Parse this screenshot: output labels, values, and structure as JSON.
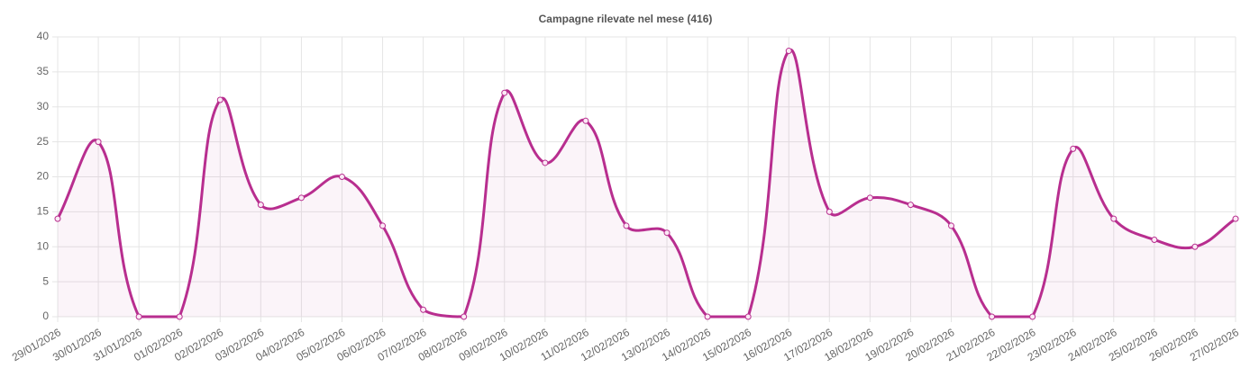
{
  "chart_data": {
    "type": "line",
    "title": "Campagne rilevate nel mese (416)",
    "categories": [
      "29/01/2026",
      "30/01/2026",
      "31/01/2026",
      "01/02/2026",
      "02/02/2026",
      "03/02/2026",
      "04/02/2026",
      "05/02/2026",
      "06/02/2026",
      "07/02/2026",
      "08/02/2026",
      "09/02/2026",
      "10/02/2026",
      "11/02/2026",
      "12/02/2026",
      "13/02/2026",
      "14/02/2026",
      "15/02/2026",
      "16/02/2026",
      "17/02/2026",
      "18/02/2026",
      "19/02/2026",
      "20/02/2026",
      "21/02/2026",
      "22/02/2026",
      "23/02/2026",
      "24/02/2026",
      "25/02/2026",
      "26/02/2026",
      "27/02/2026"
    ],
    "values": [
      14,
      25,
      0,
      0,
      31,
      16,
      17,
      20,
      13,
      1,
      0,
      32,
      22,
      28,
      13,
      12,
      0,
      0,
      38,
      15,
      17,
      16,
      13,
      0,
      0,
      24,
      14,
      11,
      10,
      14
    ],
    "color": "#b82e8f",
    "fill": "rgba(184,46,143,0.05)",
    "ylim": [
      0,
      40
    ],
    "yticks": [
      0,
      5,
      10,
      15,
      20,
      25,
      30,
      35,
      40
    ],
    "grid": true
  }
}
